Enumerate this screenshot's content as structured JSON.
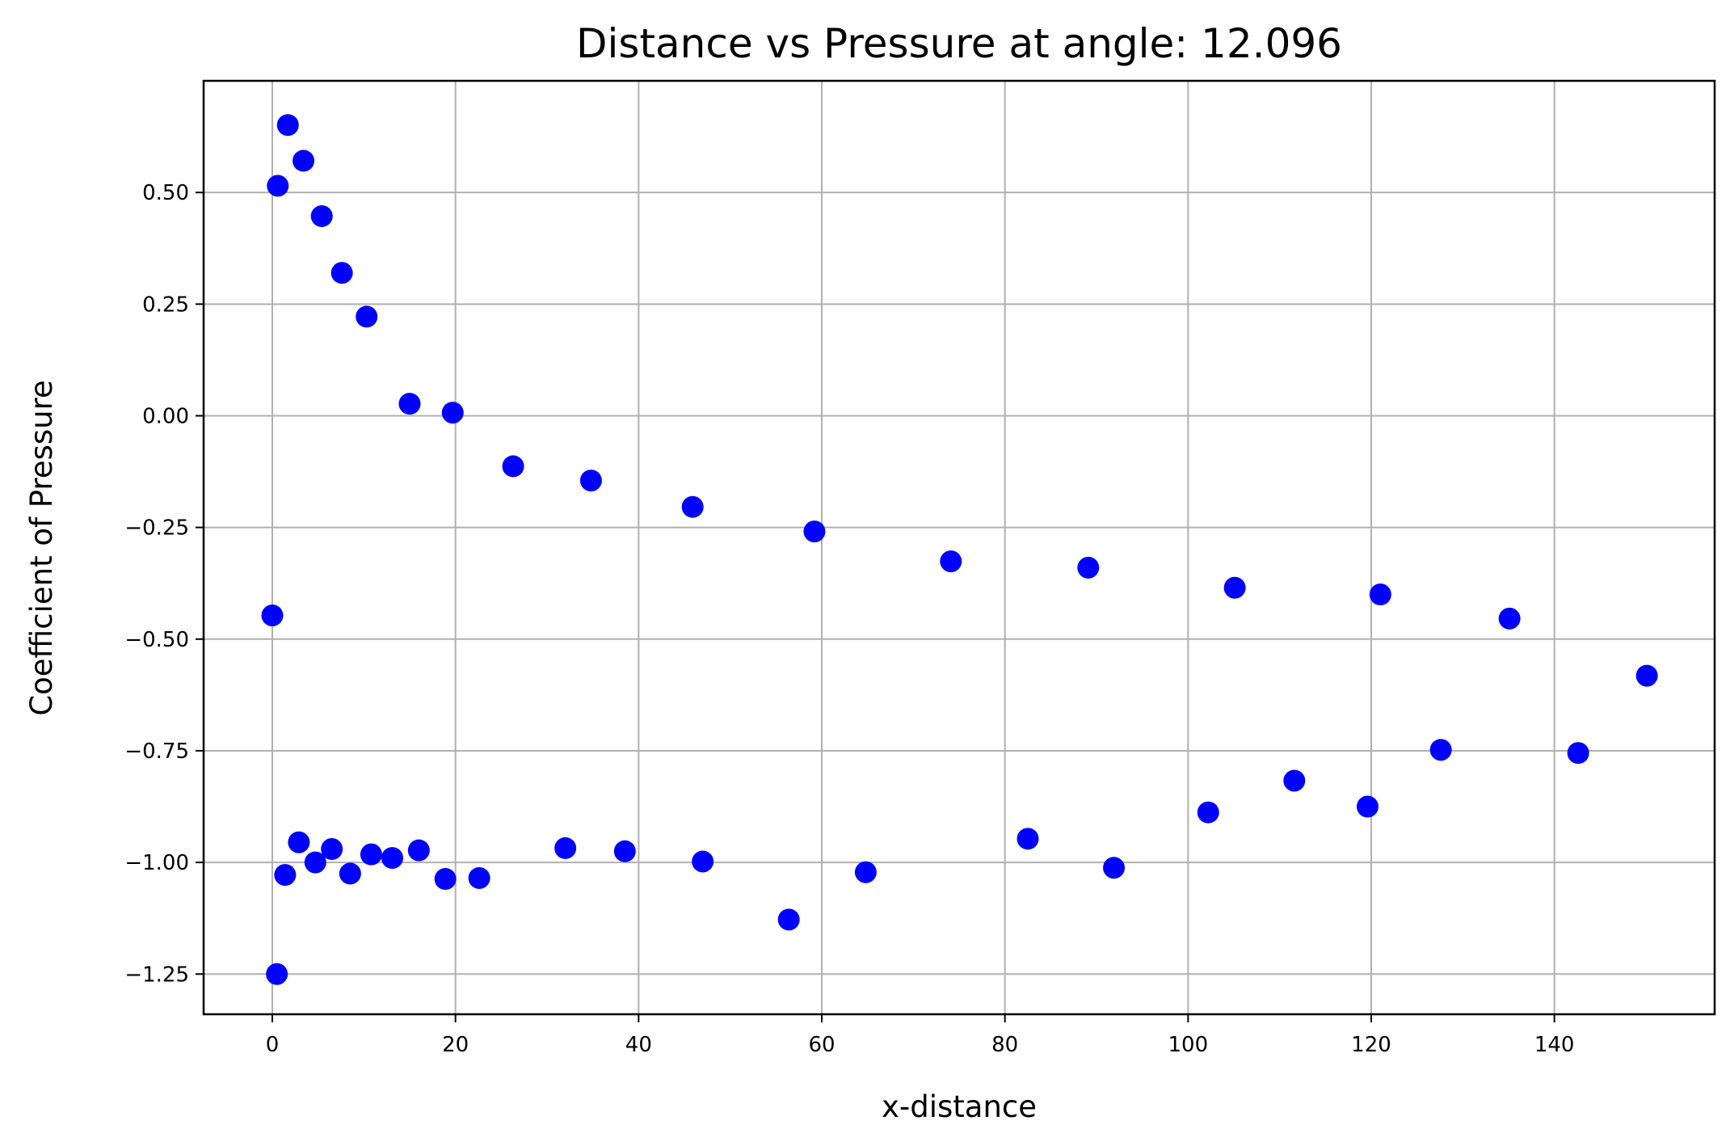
{
  "chart_data": {
    "type": "scatter",
    "title": "Distance vs Pressure at angle: 12.096",
    "xlabel": "x-distance",
    "ylabel": "Coefficient of Pressure",
    "xlim": [
      -7.5,
      157.5
    ],
    "ylim": [
      -1.34,
      0.75
    ],
    "xticks": [
      0,
      20,
      40,
      60,
      80,
      100,
      120,
      140
    ],
    "xtick_labels": [
      "0",
      "20",
      "40",
      "60",
      "80",
      "100",
      "120",
      "140"
    ],
    "yticks": [
      0.5,
      0.25,
      0.0,
      -0.25,
      -0.5,
      -0.75,
      -1.0,
      -1.25
    ],
    "ytick_labels": [
      "0.50",
      "0.25",
      "0.00",
      "−0.25",
      "−0.50",
      "−0.75",
      "−1.00",
      "−1.25"
    ],
    "grid": true,
    "marker_color": "#0000ff",
    "x": [
      0.0,
      0.6,
      1.7,
      3.4,
      5.4,
      7.6,
      10.3,
      15.0,
      19.7,
      26.3,
      34.8,
      45.9,
      59.2,
      74.1,
      89.1,
      105.1,
      121.0,
      135.1,
      150.1,
      0.5,
      1.4,
      2.9,
      4.7,
      6.5,
      8.5,
      10.8,
      13.1,
      16.0,
      18.9,
      22.6,
      32.0,
      38.5,
      47.0,
      56.4,
      64.8,
      82.5,
      91.9,
      102.2,
      111.6,
      119.6,
      127.6,
      142.6
    ],
    "y": [
      -0.447,
      0.515,
      0.651,
      0.571,
      0.447,
      0.32,
      0.222,
      0.027,
      0.007,
      -0.113,
      -0.145,
      -0.204,
      -0.259,
      -0.326,
      -0.34,
      -0.385,
      -0.4,
      -0.454,
      -0.582,
      -1.25,
      -1.028,
      -0.955,
      -1.0,
      -0.97,
      -1.025,
      -0.982,
      -0.99,
      -0.973,
      -1.037,
      -1.035,
      -0.968,
      -0.975,
      -0.998,
      -1.128,
      -1.022,
      -0.947,
      -1.012,
      -0.888,
      -0.817,
      -0.875,
      -0.748,
      -0.755
    ]
  }
}
